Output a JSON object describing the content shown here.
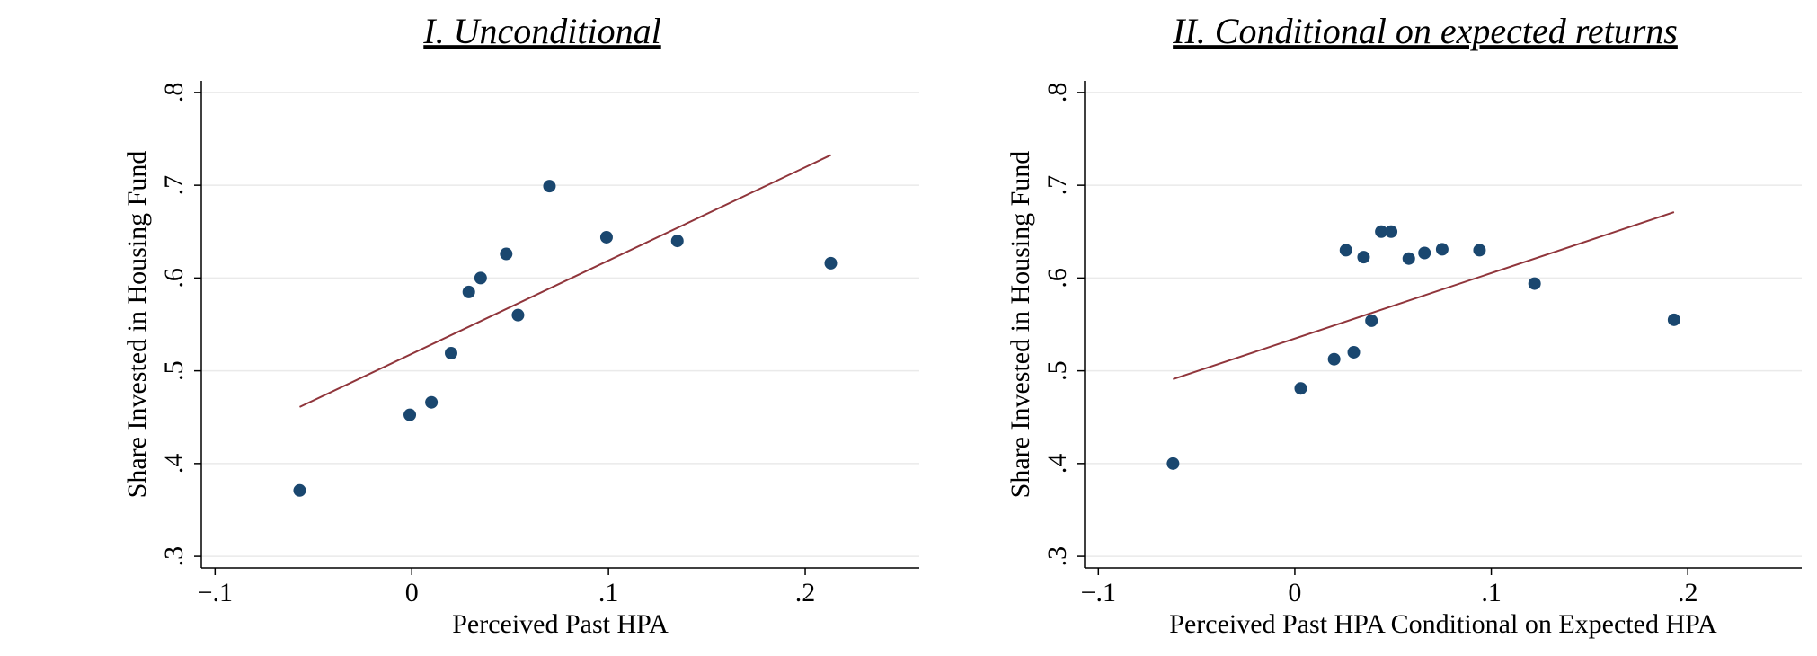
{
  "chart_data": [
    {
      "type": "scatter",
      "title": "I. Unconditional",
      "x_label": "Perceived Past HPA",
      "y_label": "Share Invested in Housing Fund",
      "x": [
        -0.057,
        -0.001,
        0.01,
        0.02,
        0.029,
        0.035,
        0.048,
        0.054,
        0.07,
        0.099,
        0.135,
        0.213
      ],
      "values": [
        0.371,
        0.4525,
        0.466,
        0.519,
        0.585,
        0.6,
        0.626,
        0.56,
        0.699,
        0.644,
        0.64,
        0.616
      ],
      "color": "#1a476f",
      "fit": {
        "x": [
          -0.057,
          0.213
        ],
        "values": [
          0.461,
          0.7325
        ],
        "color": "#90353b"
      },
      "xlim": [
        -0.107,
        0.258
      ],
      "ylim": [
        0.2875,
        0.8125
      ],
      "xticks": [
        {
          "value": -0.1,
          "label": "−.1"
        },
        0,
        {
          "value": 0.1,
          "label": ".1"
        },
        {
          "value": 0.2,
          "label": ".2"
        }
      ],
      "yticks": [
        {
          "value": 0.3,
          "label": ".3"
        },
        {
          "value": 0.4,
          "label": ".4"
        },
        {
          "value": 0.5,
          "label": ".5"
        },
        {
          "value": 0.6,
          "label": ".6"
        },
        {
          "value": 0.7,
          "label": ".7"
        },
        {
          "value": 0.8,
          "label": ".8"
        }
      ],
      "grid": true
    },
    {
      "type": "scatter",
      "title": "II. Conditional on expected returns",
      "x_label": "Perceived Past HPA Conditional on Expected HPA",
      "y_label": "Share Invested in Housing Fund",
      "x": [
        -0.062,
        0.003,
        0.02,
        0.03,
        0.039,
        0.026,
        0.035,
        0.044,
        0.049,
        0.058,
        0.066,
        0.075,
        0.094,
        0.122,
        0.193
      ],
      "values": [
        0.4,
        0.481,
        0.5125,
        0.52,
        0.554,
        0.63,
        0.6225,
        0.65,
        0.65,
        0.621,
        0.627,
        0.631,
        0.63,
        0.594,
        0.555
      ],
      "color": "#1a476f",
      "fit": {
        "x": [
          -0.062,
          0.193
        ],
        "values": [
          0.491,
          0.671
        ],
        "color": "#90353b"
      },
      "xlim": [
        -0.107,
        0.258
      ],
      "ylim": [
        0.2875,
        0.8125
      ],
      "xticks": [
        {
          "value": -0.1,
          "label": "−.1"
        },
        0,
        {
          "value": 0.1,
          "label": ".1"
        },
        {
          "value": 0.2,
          "label": ".2"
        }
      ],
      "yticks": [
        {
          "value": 0.3,
          "label": ".3"
        },
        {
          "value": 0.4,
          "label": ".4"
        },
        {
          "value": 0.5,
          "label": ".5"
        },
        {
          "value": 0.6,
          "label": ".6"
        },
        {
          "value": 0.7,
          "label": ".7"
        },
        {
          "value": 0.8,
          "label": ".8"
        }
      ],
      "grid": true
    }
  ]
}
